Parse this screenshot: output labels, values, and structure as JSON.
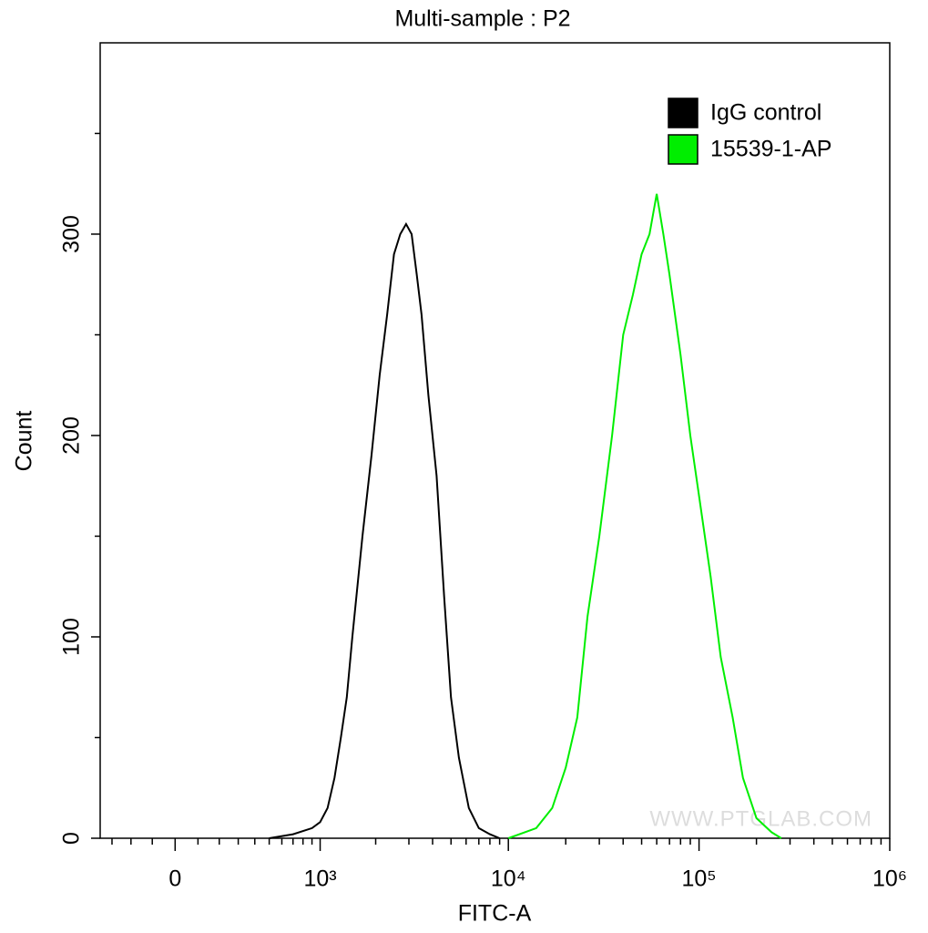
{
  "chart_data": {
    "type": "line",
    "title": "Multi-sample : P2",
    "x_label": "FITC-A",
    "y_label": "Count",
    "xscale": "biexponential",
    "xlim": [
      -370,
      1000000
    ],
    "ylim": [
      0,
      395
    ],
    "xticks": [
      0,
      {
        "value": 1000,
        "label": "10³"
      },
      {
        "value": 10000,
        "label": "10⁴"
      },
      {
        "value": 100000,
        "label": "10⁵"
      },
      {
        "value": 1000000,
        "label": "10⁶"
      }
    ],
    "xminor_ticks": [
      -300,
      -200,
      -100,
      100,
      200,
      300,
      400,
      500,
      600,
      700,
      800,
      900,
      2000,
      3000,
      4000,
      5000,
      6000,
      7000,
      8000,
      9000,
      20000,
      30000,
      40000,
      50000,
      60000,
      70000,
      80000,
      90000,
      200000,
      300000,
      400000,
      500000,
      600000,
      700000,
      800000,
      900000
    ],
    "yticks": [
      0,
      100,
      200,
      300
    ],
    "yminor_ticks": [
      50,
      150,
      250,
      350
    ],
    "legend": "top-right",
    "watermark": "WWW.PTGLAB.COM",
    "series": [
      {
        "name": "IgG control",
        "color": "#000000",
        "x": [
          500,
          700,
          900,
          1000,
          1100,
          1200,
          1300,
          1400,
          1500,
          1700,
          1900,
          2100,
          2300,
          2500,
          2700,
          2900,
          3100,
          3300,
          3500,
          3800,
          4200,
          4600,
          5000,
          5500,
          6200,
          7000,
          8000,
          9000
        ],
        "values": [
          0,
          2,
          5,
          8,
          15,
          30,
          50,
          70,
          100,
          150,
          190,
          230,
          260,
          290,
          300,
          305,
          300,
          280,
          260,
          220,
          180,
          120,
          70,
          40,
          15,
          5,
          2,
          0
        ]
      },
      {
        "name": "15539-1-AP",
        "color": "#00ee00",
        "x": [
          10000,
          14000,
          17000,
          20000,
          23000,
          26000,
          30000,
          35000,
          40000,
          45000,
          50000,
          55000,
          60000,
          65000,
          70000,
          80000,
          90000,
          100000,
          115000,
          130000,
          150000,
          170000,
          200000,
          240000,
          270000
        ],
        "values": [
          0,
          5,
          15,
          35,
          60,
          110,
          150,
          200,
          250,
          270,
          290,
          300,
          320,
          300,
          280,
          240,
          200,
          170,
          130,
          90,
          60,
          30,
          10,
          3,
          0
        ]
      }
    ]
  }
}
